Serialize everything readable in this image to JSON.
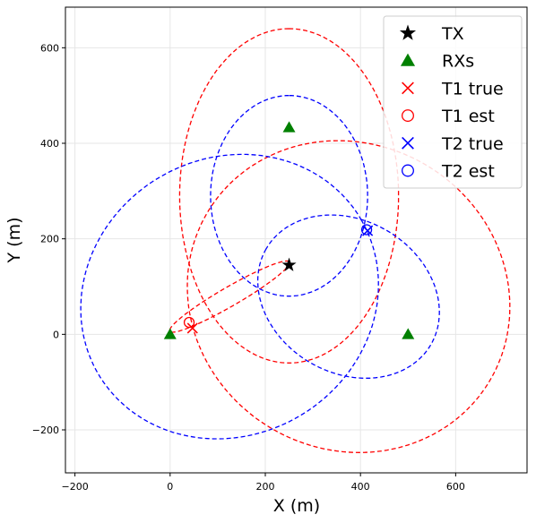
{
  "chart_data": {
    "type": "scatter",
    "title": "",
    "xlabel": "X (m)",
    "ylabel": "Y (m)",
    "xlim": [
      -220,
      750
    ],
    "ylim": [
      -290,
      685
    ],
    "xticks": [
      -200,
      0,
      200,
      400,
      600
    ],
    "yticks": [
      -200,
      0,
      200,
      400,
      600
    ],
    "xtick_labels": [
      "−200",
      "0",
      "200",
      "400",
      "600"
    ],
    "ytick_labels": [
      "−200",
      "0",
      "200",
      "400",
      "600"
    ],
    "grid": true,
    "legend_position": "top-right",
    "series": [
      {
        "name": "TX",
        "marker": "star",
        "color": "#000000",
        "points": [
          [
            250,
            145
          ]
        ]
      },
      {
        "name": "RXs",
        "marker": "triangle",
        "color": "#008000",
        "points": [
          [
            0,
            0
          ],
          [
            250,
            433
          ],
          [
            500,
            0
          ]
        ]
      },
      {
        "name": "T1 true",
        "marker": "x",
        "color": "#ff0000",
        "points": [
          [
            47,
            13
          ]
        ]
      },
      {
        "name": "T1 est",
        "marker": "circle-open",
        "color": "#ff0000",
        "points": [
          [
            40,
            25
          ]
        ]
      },
      {
        "name": "T2 true",
        "marker": "x",
        "color": "#0000ff",
        "points": [
          [
            415,
            217
          ]
        ]
      },
      {
        "name": "T2 est",
        "marker": "circle-open",
        "color": "#0000ff",
        "points": [
          [
            413,
            219
          ]
        ]
      }
    ],
    "ellipses": [
      {
        "group": "T1",
        "color": "#ff0000",
        "center": [
          125,
          79
        ],
        "a": 145,
        "b": 20,
        "angle_deg": 30
      },
      {
        "group": "T1",
        "color": "#ff0000",
        "center": [
          250,
          290
        ],
        "a": 350,
        "b": 230,
        "angle_deg": 90
      },
      {
        "group": "T1",
        "color": "#ff0000",
        "center": [
          375,
          79
        ],
        "a": 345,
        "b": 320,
        "angle_deg": 150
      },
      {
        "group": "T2",
        "color": "#0000ff",
        "center": [
          125,
          79
        ],
        "a": 320,
        "b": 290,
        "angle_deg": 30
      },
      {
        "group": "T2",
        "color": "#0000ff",
        "center": [
          250,
          290
        ],
        "a": 210,
        "b": 165,
        "angle_deg": 90
      },
      {
        "group": "T2",
        "color": "#0000ff",
        "center": [
          375,
          79
        ],
        "a": 200,
        "b": 160,
        "angle_deg": 150
      }
    ]
  }
}
